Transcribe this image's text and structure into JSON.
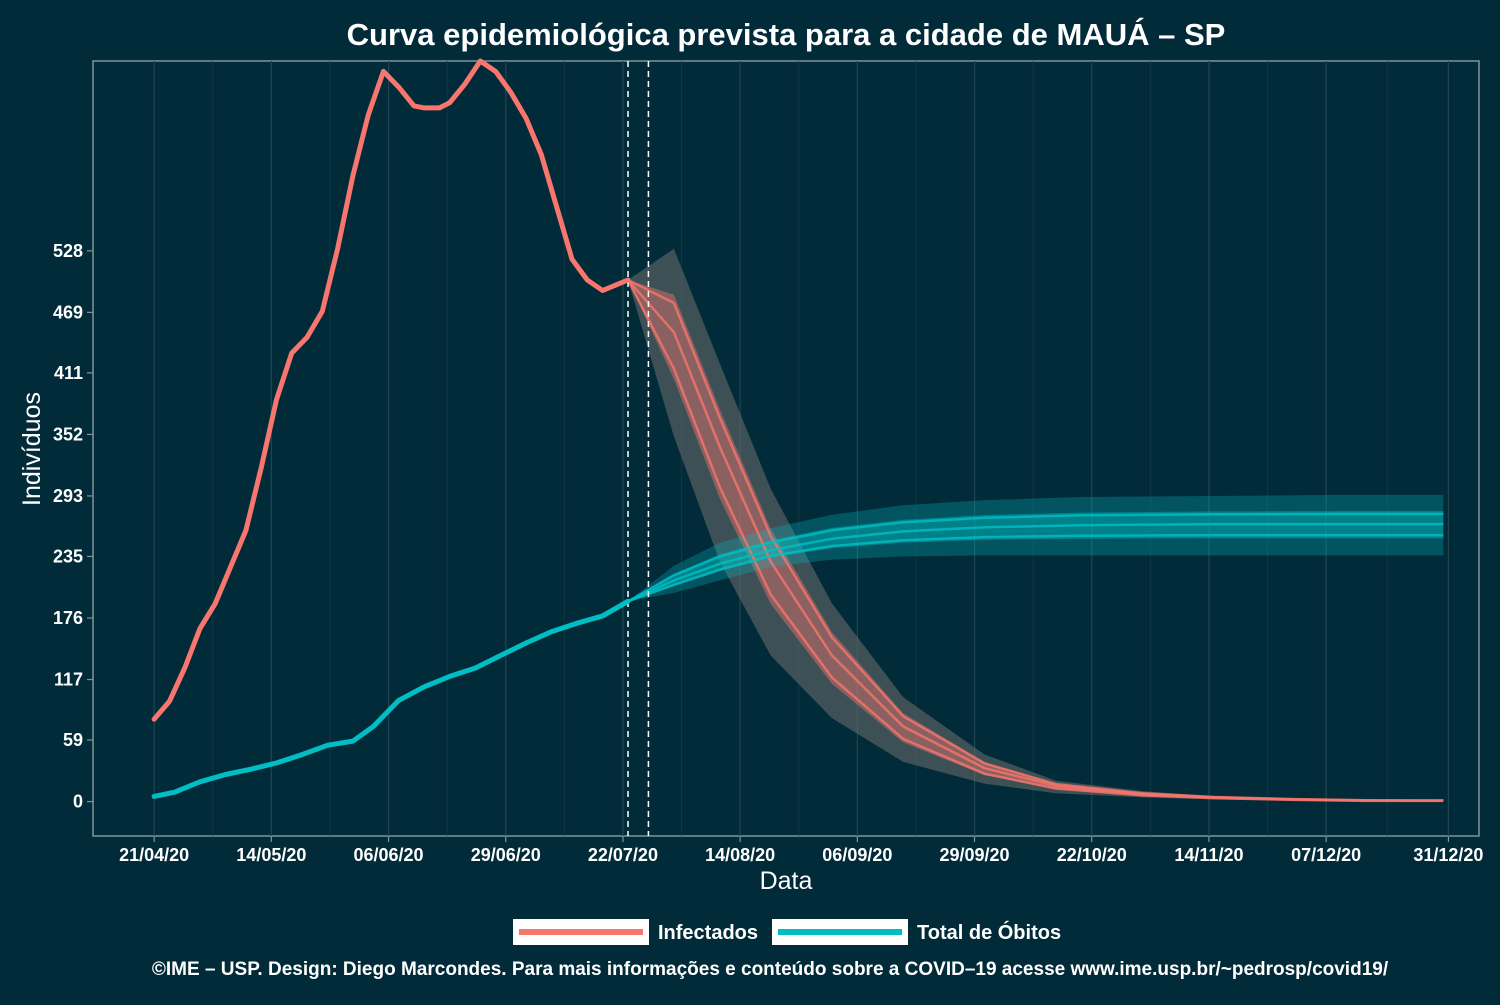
{
  "chart_data": {
    "type": "line",
    "title": "Curva epidemiológica prevista para a cidade de MAUÁ – SP",
    "xlabel": "Data",
    "ylabel": "Indivíduos",
    "caption": "©IME – USP. Design: Diego Marcondes. Para mais informações e conteúdo sobre a COVID–19 acesse www.ime.usp.br/~pedrosp/covid19/",
    "x_ticks": [
      "21/04/20",
      "14/05/20",
      "06/06/20",
      "29/06/20",
      "22/07/20",
      "14/08/20",
      "06/09/20",
      "29/09/20",
      "22/10/20",
      "14/11/20",
      "07/12/20",
      "31/12/20"
    ],
    "y_ticks": [
      "0",
      "59",
      "117",
      "176",
      "235",
      "293",
      "352",
      "411",
      "469",
      "528"
    ],
    "xlim": [
      "2020-04-09",
      "2021-01-06"
    ],
    "ylim": [
      -33,
      710
    ],
    "grid": "vertical",
    "legend_position": "bottom",
    "vlines": [
      "2020-07-23",
      "2020-07-27"
    ],
    "series": [
      {
        "name": "Infectados",
        "color": "#f8766d",
        "observed": {
          "x": [
            "2020-04-21",
            "2020-04-24",
            "2020-04-27",
            "2020-04-30",
            "2020-05-03",
            "2020-05-06",
            "2020-05-09",
            "2020-05-12",
            "2020-05-15",
            "2020-05-18",
            "2020-05-21",
            "2020-05-24",
            "2020-05-27",
            "2020-05-30",
            "2020-06-02",
            "2020-06-05",
            "2020-06-08",
            "2020-06-11",
            "2020-06-13",
            "2020-06-16",
            "2020-06-18",
            "2020-06-21",
            "2020-06-24",
            "2020-06-27",
            "2020-06-30",
            "2020-07-03",
            "2020-07-06",
            "2020-07-09",
            "2020-07-12",
            "2020-07-15",
            "2020-07-18",
            "2020-07-21",
            "2020-07-23"
          ],
          "y": [
            79,
            96,
            128,
            166,
            190,
            225,
            260,
            320,
            385,
            430,
            445,
            470,
            530,
            600,
            658,
            700,
            685,
            667,
            665,
            665,
            670,
            688,
            710,
            700,
            680,
            655,
            620,
            570,
            520,
            500,
            490,
            496,
            500
          ]
        },
        "forecast": {
          "x": [
            "2020-07-23",
            "2020-08-01",
            "2020-08-10",
            "2020-08-20",
            "2020-09-01",
            "2020-09-15",
            "2020-10-01",
            "2020-10-15",
            "2020-11-01",
            "2020-11-15",
            "2020-12-01",
            "2020-12-15",
            "2020-12-30"
          ],
          "y": [
            500,
            450,
            340,
            230,
            140,
            72,
            32,
            15,
            7,
            4,
            2,
            1,
            1
          ],
          "lower": [
            500,
            350,
            230,
            140,
            80,
            38,
            17,
            8,
            4,
            2,
            1,
            0,
            0
          ],
          "upper": [
            500,
            530,
            420,
            300,
            190,
            100,
            45,
            20,
            10,
            5,
            3,
            2,
            1
          ]
        }
      },
      {
        "name": "Total de Óbitos",
        "color": "#00bfc4",
        "observed": {
          "x": [
            "2020-04-21",
            "2020-04-25",
            "2020-04-30",
            "2020-05-05",
            "2020-05-10",
            "2020-05-15",
            "2020-05-20",
            "2020-05-25",
            "2020-05-30",
            "2020-06-03",
            "2020-06-08",
            "2020-06-13",
            "2020-06-18",
            "2020-06-23",
            "2020-06-28",
            "2020-07-03",
            "2020-07-08",
            "2020-07-13",
            "2020-07-18",
            "2020-07-23"
          ],
          "y": [
            5,
            9,
            19,
            26,
            31,
            37,
            45,
            54,
            58,
            72,
            97,
            110,
            120,
            128,
            140,
            152,
            163,
            171,
            178,
            192
          ]
        },
        "forecast": {
          "x": [
            "2020-07-23",
            "2020-08-01",
            "2020-08-10",
            "2020-08-20",
            "2020-09-01",
            "2020-09-15",
            "2020-10-01",
            "2020-10-20",
            "2020-11-15",
            "2020-12-10",
            "2020-12-30"
          ],
          "y": [
            192,
            212,
            228,
            241,
            252,
            259,
            263,
            265,
            266,
            266,
            266
          ],
          "lower": [
            192,
            200,
            212,
            225,
            232,
            235,
            236,
            236,
            236,
            236,
            236
          ],
          "upper": [
            192,
            226,
            248,
            262,
            275,
            284,
            289,
            292,
            293,
            294,
            294
          ]
        }
      }
    ]
  }
}
